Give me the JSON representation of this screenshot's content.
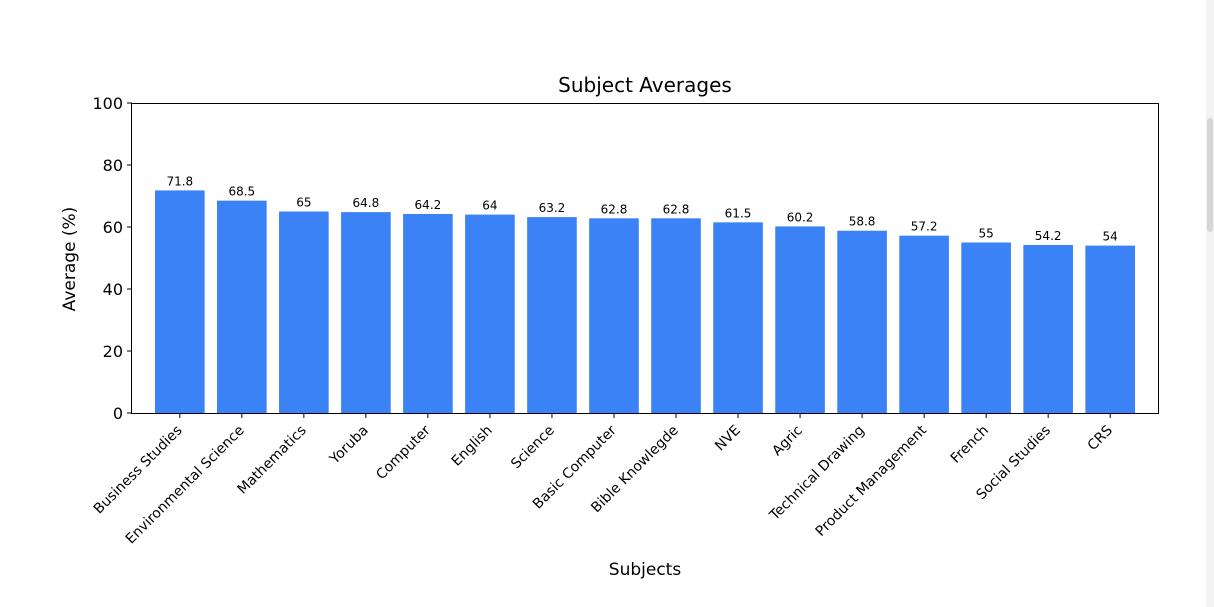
{
  "chart_data": {
    "type": "bar",
    "title": "Subject Averages",
    "xlabel": "Subjects",
    "ylabel": "Average (%)",
    "ylim": [
      0,
      100
    ],
    "yticks": [
      0,
      20,
      40,
      60,
      80,
      100
    ],
    "grid": false,
    "legend": null,
    "bar_color": "#3b82f6",
    "categories": [
      "Business Studies",
      "Environmental Science",
      "Mathematics",
      "Yoruba",
      "Computer",
      "English",
      "Science",
      "Basic Computer",
      "Bible Knowlegde",
      "NVE",
      "Agric",
      "Technical Drawing",
      "Product Management",
      "French",
      "Social Studies",
      "CRS"
    ],
    "values": [
      71.8,
      68.5,
      65,
      64.8,
      64.2,
      64,
      63.2,
      62.8,
      62.8,
      61.5,
      60.2,
      58.8,
      57.2,
      55,
      54.2,
      54
    ],
    "data_labels": [
      "71.8",
      "68.5",
      "65",
      "64.8",
      "64.2",
      "64",
      "63.2",
      "62.8",
      "62.8",
      "61.5",
      "60.2",
      "58.8",
      "57.2",
      "55",
      "54.2",
      "54"
    ]
  }
}
